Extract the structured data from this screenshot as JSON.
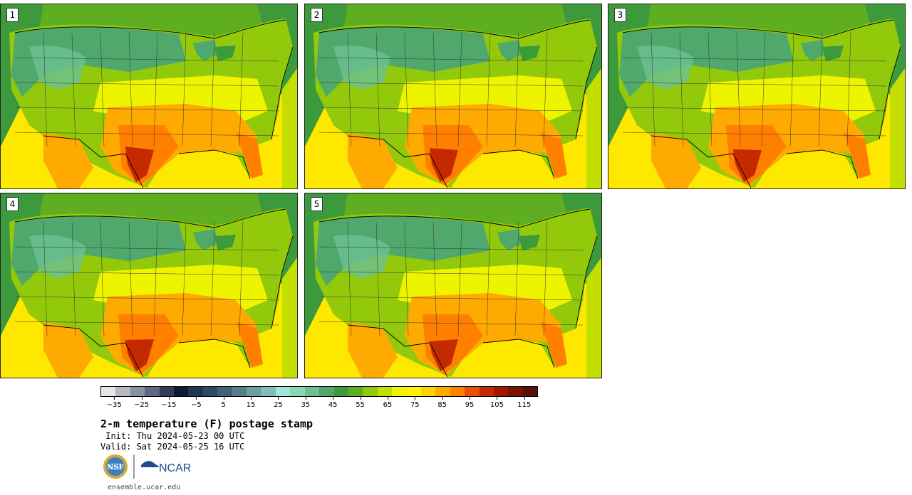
{
  "panels": [
    {
      "label": "1"
    },
    {
      "label": "2"
    },
    {
      "label": "3"
    },
    {
      "label": "4"
    },
    {
      "label": "5"
    }
  ],
  "colorbar": {
    "colors": [
      "#e6e6e6",
      "#b8b8c2",
      "#8a90a6",
      "#5f6784",
      "#333b59",
      "#101a30",
      "#1f3550",
      "#2d4a66",
      "#3e6276",
      "#577f8a",
      "#6d9ea2",
      "#82bdb8",
      "#a0e6d6",
      "#88d6b2",
      "#6cc092",
      "#50a86c",
      "#3c9a3c",
      "#5fae22",
      "#92c90a",
      "#c3df00",
      "#eef400",
      "#fff200",
      "#ffd400",
      "#ffaa00",
      "#ff7f00",
      "#e84f00",
      "#c42a00",
      "#a01800",
      "#7c1200",
      "#581008"
    ],
    "tick_labels": [
      "−35",
      "−25",
      "−15",
      "−5",
      "5",
      "15",
      "25",
      "35",
      "45",
      "55",
      "65",
      "75",
      "85",
      "95",
      "105",
      "115"
    ],
    "min": -40,
    "max": 120
  },
  "title": "2-m temperature (F) postage stamp",
  "init_line": " Init: Thu 2024-05-23 00 UTC",
  "valid_line": "Valid: Sat 2024-05-25 16 UTC",
  "logos": {
    "nsf": "NSF",
    "ncar": "NCAR"
  },
  "site": "ensemble.ucar.edu"
}
